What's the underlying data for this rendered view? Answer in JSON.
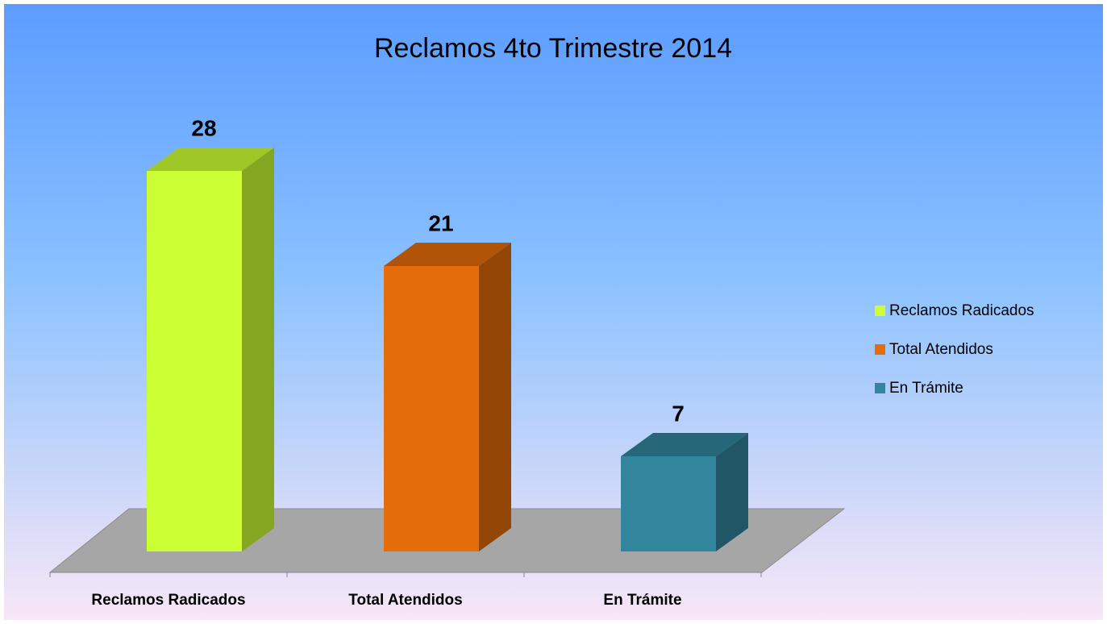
{
  "chart_data": {
    "type": "bar3d",
    "title": "Reclamos 4to Trimestre 2014",
    "categories": [
      "Reclamos Radicados",
      "Total Atendidos",
      "En Trámite"
    ],
    "values": [
      28,
      21,
      7
    ],
    "colors": [
      "#ccff33",
      "#e46c0a",
      "#31859c"
    ],
    "legend": "right"
  }
}
